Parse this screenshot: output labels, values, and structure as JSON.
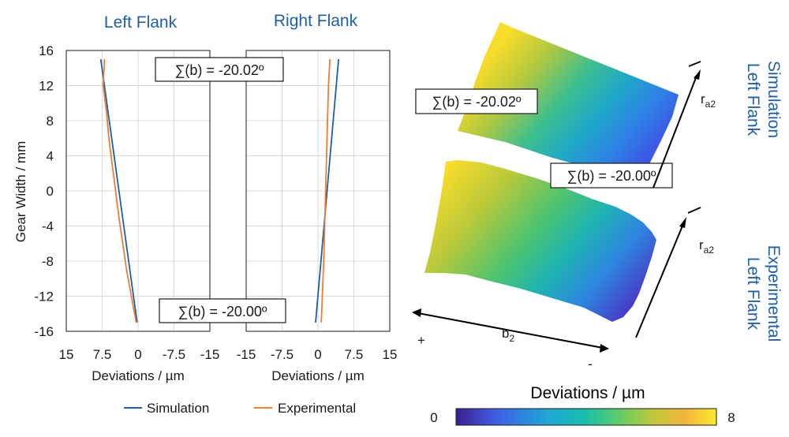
{
  "chart_data": [
    {
      "type": "line",
      "title": "Left Flank",
      "xlabel": "Deviations / µm",
      "ylabel": "Gear Width / mm",
      "xlim": [
        15,
        -15
      ],
      "ylim": [
        -16,
        16
      ],
      "xticks": [
        "15",
        "7.5",
        "0",
        "-7.5",
        "-15"
      ],
      "yticks": [
        "16",
        "12",
        "8",
        "4",
        "0",
        "-4",
        "-8",
        "-12",
        "-16"
      ],
      "grid": true,
      "annotations": [
        "∑(b) = -20.02º",
        "∑(b) = -20.00º"
      ],
      "series": [
        {
          "name": "Simulation",
          "color": "#1f5fa8",
          "x": [
            7.8,
            0.2
          ],
          "y": [
            15,
            -15
          ]
        },
        {
          "name": "Experimental",
          "color": "#ed7d31",
          "x": [
            7.0,
            7.3,
            6.6,
            6.1,
            5.4,
            4.7,
            4.0,
            3.2,
            2.4,
            1.4,
            0.4
          ],
          "y": [
            15,
            12,
            9,
            6,
            3,
            0,
            -3,
            -6,
            -9,
            -12,
            -15
          ]
        }
      ]
    },
    {
      "type": "line",
      "title": "Right Flank",
      "xlabel": "Deviations / µm",
      "ylabel": "",
      "xlim": [
        -15,
        15
      ],
      "ylim": [
        -16,
        16
      ],
      "xticks": [
        "-15",
        "-7.5",
        "0",
        "7.5",
        "15"
      ],
      "yticks": [],
      "grid": true,
      "series": [
        {
          "name": "Simulation",
          "color": "#1f5fa8",
          "x": [
            -0.5,
            4.3
          ],
          "y": [
            -15,
            15
          ]
        },
        {
          "name": "Experimental",
          "color": "#ed7d31",
          "x": [
            0.7,
            0.9,
            1.2,
            1.4,
            1.6,
            1.8,
            2.0,
            2.2,
            2.5
          ],
          "y": [
            -15,
            -12,
            -8,
            -4,
            0,
            4,
            8,
            12,
            15
          ]
        }
      ]
    }
  ],
  "legend": {
    "items": [
      {
        "label": "Simulation",
        "color": "#1f5fa8"
      },
      {
        "label": "Experimental",
        "color": "#ed7d31"
      }
    ]
  },
  "surface": {
    "sim_label": "∑(b) = -20.02º",
    "exp_label": "∑(b) = -20.00º",
    "side_sim_1": "Simulation",
    "side_sim_2": "Left Flank",
    "side_exp_1": "Experimental",
    "side_exp_2": "Left Flank",
    "ra2_base": "r",
    "ra2_sub": "a2",
    "b2_base": "b",
    "b2_sub": "2",
    "plus": "+",
    "minus": "-"
  },
  "colorbar": {
    "title": "Deviations / µm",
    "min_label": "0",
    "max_label": "8",
    "range": [
      0,
      8
    ],
    "colors": [
      "#3b1f8e",
      "#3e5ee6",
      "#1fa6d6",
      "#18c0a9",
      "#5ccc6a",
      "#bcc93a",
      "#f3b53a",
      "#fbeb2a"
    ]
  }
}
